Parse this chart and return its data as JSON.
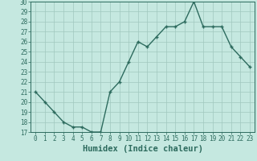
{
  "x": [
    0,
    1,
    2,
    3,
    4,
    5,
    6,
    7,
    8,
    9,
    10,
    11,
    12,
    13,
    14,
    15,
    16,
    17,
    18,
    19,
    20,
    21,
    22,
    23
  ],
  "y": [
    21,
    20,
    19,
    18,
    17.5,
    17.5,
    17,
    17,
    21,
    22,
    24,
    26,
    25.5,
    26.5,
    27.5,
    27.5,
    28,
    30,
    27.5,
    27.5,
    27.5,
    25.5,
    24.5,
    23.5
  ],
  "line_color": "#2d6b5e",
  "marker": "+",
  "marker_size": 3,
  "marker_linewidth": 1.0,
  "line_width": 1.0,
  "background_color": "#c5e8e0",
  "grid_color": "#a0c8be",
  "xlabel": "Humidex (Indice chaleur)",
  "ylabel": "",
  "xlim": [
    -0.5,
    23.5
  ],
  "ylim": [
    17,
    30
  ],
  "yticks": [
    17,
    18,
    19,
    20,
    21,
    22,
    23,
    24,
    25,
    26,
    27,
    28,
    29,
    30
  ],
  "xticks": [
    0,
    1,
    2,
    3,
    4,
    5,
    6,
    7,
    8,
    9,
    10,
    11,
    12,
    13,
    14,
    15,
    16,
    17,
    18,
    19,
    20,
    21,
    22,
    23
  ],
  "tick_label_fontsize": 5.5,
  "xlabel_fontsize": 7.5,
  "xlabel_color": "#2d6b5e",
  "tick_color": "#2d6b5e",
  "spine_color": "#2d6b5e"
}
